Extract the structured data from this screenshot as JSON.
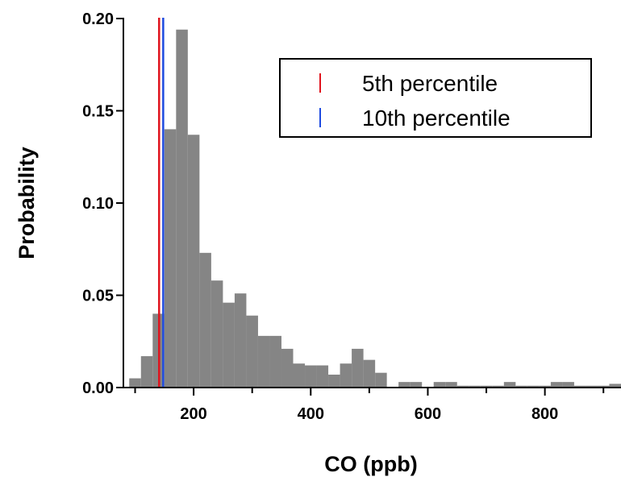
{
  "chart_data": {
    "type": "bar",
    "title": "",
    "xlabel": "CO (ppb)",
    "ylabel": "Probability",
    "xlim": [
      80,
      930
    ],
    "ylim": [
      0,
      0.2
    ],
    "grid": false,
    "xticks": [
      {
        "value": 200,
        "label": "200"
      },
      {
        "value": 400,
        "label": "400"
      },
      {
        "value": 600,
        "label": "600"
      },
      {
        "value": 800,
        "label": "800"
      }
    ],
    "x_minor_ticks": [
      100,
      300,
      500,
      700,
      900
    ],
    "yticks": [
      {
        "value": 0.0,
        "label": "0.00"
      },
      {
        "value": 0.05,
        "label": "0.05"
      },
      {
        "value": 0.1,
        "label": "0.10"
      },
      {
        "value": 0.15,
        "label": "0.15"
      },
      {
        "value": 0.2,
        "label": "0.20"
      }
    ],
    "bin_width": 20,
    "bin_starts": [
      90,
      110,
      130,
      150,
      170,
      190,
      210,
      230,
      250,
      270,
      290,
      310,
      330,
      350,
      370,
      390,
      410,
      430,
      450,
      470,
      490,
      510,
      530,
      550,
      570,
      590,
      610,
      630,
      650,
      670,
      690,
      710,
      730,
      750,
      770,
      790,
      810,
      830,
      850,
      870,
      890,
      910
    ],
    "values": [
      0.005,
      0.017,
      0.04,
      0.14,
      0.194,
      0.137,
      0.073,
      0.058,
      0.046,
      0.051,
      0.039,
      0.028,
      0.028,
      0.021,
      0.013,
      0.012,
      0.012,
      0.007,
      0.013,
      0.021,
      0.015,
      0.008,
      0.0,
      0.003,
      0.003,
      0.0,
      0.003,
      0.003,
      0.001,
      0.001,
      0.001,
      0.001,
      0.003,
      0.001,
      0.001,
      0.001,
      0.003,
      0.003,
      0.001,
      0.001,
      0.001,
      0.002
    ],
    "bar_color": "#858585",
    "vertical_lines": [
      {
        "name": "5th percentile",
        "x": 141,
        "color": "#e0141e"
      },
      {
        "name": "10th percentile",
        "x": 148,
        "color": "#1e4be0"
      }
    ],
    "legend_position": "top-right"
  }
}
